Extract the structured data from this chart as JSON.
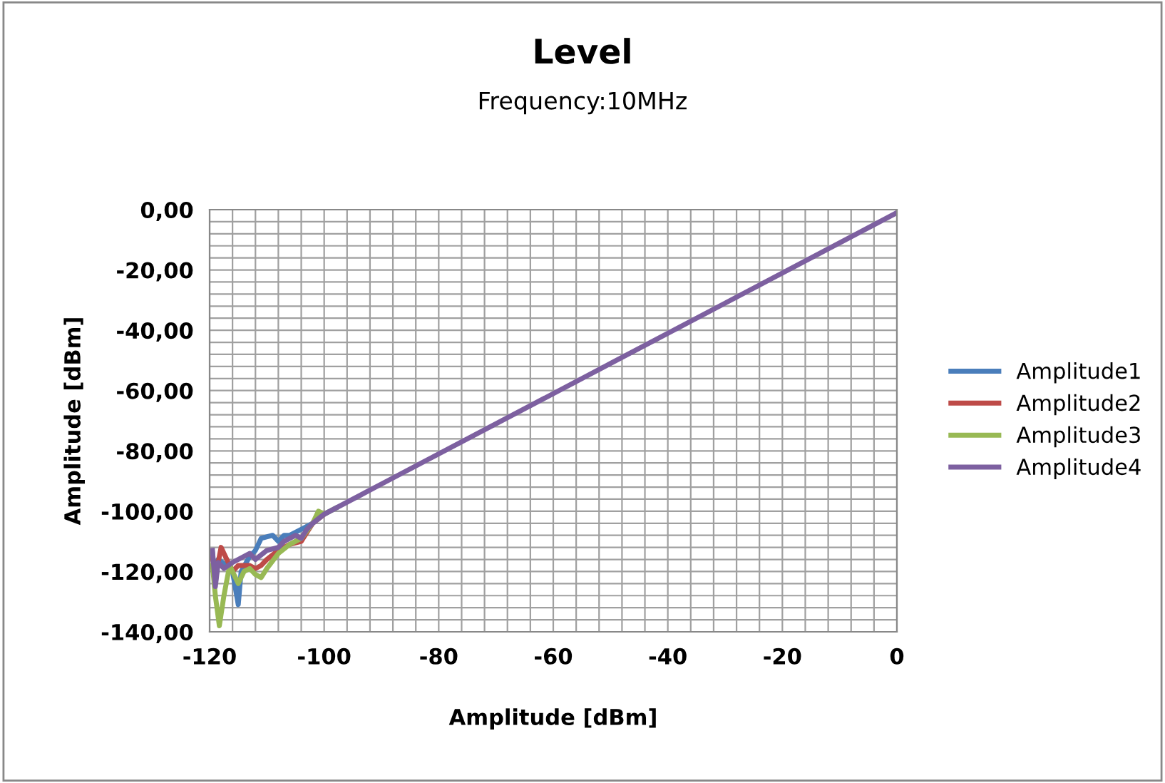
{
  "chart_data": {
    "type": "line",
    "title": "Level",
    "subtitle": "Frequency:10MHz",
    "xlabel": "Amplitude [dBm]",
    "ylabel": "Amplitude [dBm]",
    "xlim": [
      -120,
      0
    ],
    "ylim": [
      -140,
      0
    ],
    "xticks": [
      -120,
      {
        "value": -116,
        "label": null
      },
      {
        "value": -112,
        "label": null
      },
      {
        "value": -108,
        "label": null
      },
      {
        "value": -104,
        "label": null
      },
      -100,
      {
        "value": -96,
        "label": null
      },
      {
        "value": -92,
        "label": null
      },
      {
        "value": -88,
        "label": null
      },
      {
        "value": -84,
        "label": null
      },
      -80,
      {
        "value": -76,
        "label": null
      },
      {
        "value": -72,
        "label": null
      },
      {
        "value": -68,
        "label": null
      },
      {
        "value": -64,
        "label": null
      },
      -60,
      {
        "value": -56,
        "label": null
      },
      {
        "value": -52,
        "label": null
      },
      {
        "value": -48,
        "label": null
      },
      {
        "value": -44,
        "label": null
      },
      -40,
      {
        "value": -36,
        "label": null
      },
      {
        "value": -32,
        "label": null
      },
      {
        "value": -28,
        "label": null
      },
      {
        "value": -24,
        "label": null
      },
      -20,
      {
        "value": -16,
        "label": null
      },
      {
        "value": -12,
        "label": null
      },
      {
        "value": -8,
        "label": null
      },
      {
        "value": -4,
        "label": null
      },
      0
    ],
    "yticks": [
      {
        "value": 0,
        "label": "0,00"
      },
      {
        "value": -4,
        "label": null
      },
      {
        "value": -8,
        "label": null
      },
      {
        "value": -12,
        "label": null
      },
      {
        "value": -16,
        "label": null
      },
      {
        "value": -20,
        "label": "-20,00"
      },
      {
        "value": -24,
        "label": null
      },
      {
        "value": -28,
        "label": null
      },
      {
        "value": -32,
        "label": null
      },
      {
        "value": -36,
        "label": null
      },
      {
        "value": -40,
        "label": "-40,00"
      },
      {
        "value": -44,
        "label": null
      },
      {
        "value": -48,
        "label": null
      },
      {
        "value": -52,
        "label": null
      },
      {
        "value": -56,
        "label": null
      },
      {
        "value": -60,
        "label": "-60,00"
      },
      {
        "value": -64,
        "label": null
      },
      {
        "value": -68,
        "label": null
      },
      {
        "value": -72,
        "label": null
      },
      {
        "value": -76,
        "label": null
      },
      {
        "value": -80,
        "label": "-80,00"
      },
      {
        "value": -84,
        "label": null
      },
      {
        "value": -88,
        "label": null
      },
      {
        "value": -92,
        "label": null
      },
      {
        "value": -96,
        "label": null
      },
      {
        "value": -100,
        "label": "-100,00"
      },
      {
        "value": -104,
        "label": null
      },
      {
        "value": -108,
        "label": null
      },
      {
        "value": -112,
        "label": null
      },
      {
        "value": -116,
        "label": null
      },
      {
        "value": -120,
        "label": "-120,00"
      },
      {
        "value": -124,
        "label": null
      },
      {
        "value": -128,
        "label": null
      },
      {
        "value": -132,
        "label": null
      },
      {
        "value": -136,
        "label": null
      },
      {
        "value": -140,
        "label": "-140,00"
      }
    ],
    "grid": true,
    "legend": "right",
    "marker": "none",
    "line_style": "solid",
    "series": [
      {
        "name": "Amplitude1",
        "color": "#4a7ebb",
        "x": [
          -119.5,
          -119,
          -118.5,
          -117,
          -116,
          -115,
          -114.5,
          -113,
          -112,
          -111,
          -109,
          -108,
          -107,
          -106,
          -104,
          -102,
          -100,
          -98
        ],
        "values": [
          -114,
          -124,
          -116,
          -118,
          -120,
          -131,
          -120,
          -115,
          -113,
          -109,
          -108,
          -110,
          -108,
          -108,
          -106,
          -104,
          -101,
          -99
        ]
      },
      {
        "name": "Amplitude2",
        "color": "#be4b48",
        "x": [
          -119.5,
          -119,
          -118,
          -117,
          -116,
          -115,
          -113,
          -112,
          -111,
          -110,
          -108,
          -106,
          -104,
          -103,
          -102,
          -100
        ],
        "values": [
          -115,
          -122,
          -112,
          -116,
          -120,
          -118,
          -118,
          -119,
          -118,
          -116,
          -113,
          -111,
          -110,
          -107,
          -104,
          -101
        ]
      },
      {
        "name": "Amplitude3",
        "color": "#98b954",
        "x": [
          -119.5,
          -119,
          -118.3,
          -117.5,
          -116.5,
          -115,
          -114,
          -113,
          -112,
          -111,
          -110,
          -108,
          -106,
          -104,
          -102,
          -101,
          -100,
          -98
        ],
        "values": [
          -118,
          -128,
          -138,
          -128,
          -118,
          -124,
          -120,
          -119,
          -121,
          -122,
          -119,
          -114,
          -111,
          -109,
          -104,
          -100,
          -101,
          -99
        ]
      },
      {
        "name": "Amplitude4",
        "color": "#7d60a0",
        "x": [
          -119.5,
          -119,
          -118.5,
          -117.5,
          -116,
          -114,
          -113,
          -112,
          -110,
          -108,
          -107,
          -105,
          -104,
          -103,
          -102,
          -100,
          -98,
          -90,
          -50,
          0
        ],
        "values": [
          -113,
          -125,
          -117,
          -119,
          -117,
          -115,
          -114,
          -116,
          -113,
          -112,
          -110,
          -108,
          -109,
          -106,
          -104,
          -101,
          -99,
          -91,
          -51,
          -1
        ]
      }
    ]
  }
}
